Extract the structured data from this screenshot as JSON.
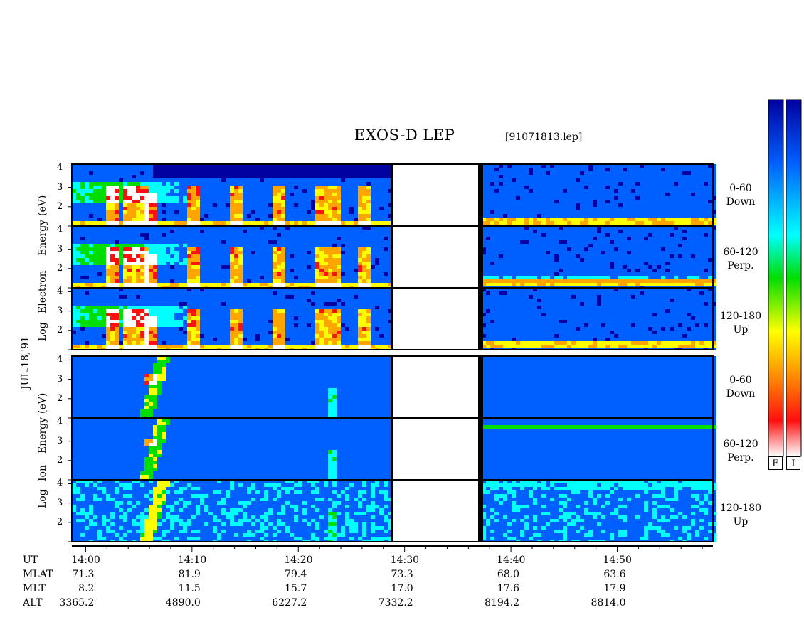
{
  "header": {
    "title": "EXOS-D LEP",
    "file_id": "[91071813.lep]"
  },
  "date_label": "JUL.18,'91",
  "electron_panel": {
    "ylabel_words": [
      "Log",
      "Electron",
      "Energy",
      "(eV)"
    ]
  },
  "ion_panel": {
    "ylabel_words": [
      "Log",
      "Ion",
      "Energy",
      "(eV)"
    ]
  },
  "pitch_labels": [
    {
      "range": "0-60",
      "dir": "Down"
    },
    {
      "range": "60-120",
      "dir": "Perp."
    },
    {
      "range": "120-180",
      "dir": "Up"
    },
    {
      "range": "0-60",
      "dir": "Down"
    },
    {
      "range": "60-120",
      "dir": "Perp."
    },
    {
      "range": "120-180",
      "dir": "Up"
    }
  ],
  "colorbar": {
    "labels": [
      "E",
      "I"
    ],
    "colors": [
      "#ffffff",
      "#ff1010",
      "#ffa500",
      "#ffff00",
      "#00dd00",
      "#00ffff",
      "#0060ff",
      "#0000a0"
    ]
  },
  "orbit_table": {
    "row_labels": [
      "UT",
      "MLAT",
      "MLT",
      "ALT"
    ],
    "columns": [
      {
        "UT": "14:00",
        "MLAT": "71.3",
        "MLT": "8.2",
        "ALT": "3365.2"
      },
      {
        "UT": "14:10",
        "MLAT": "81.9",
        "MLT": "11.5",
        "ALT": "4890.0"
      },
      {
        "UT": "14:20",
        "MLAT": "79.4",
        "MLT": "15.7",
        "ALT": "6227.2"
      },
      {
        "UT": "14:30",
        "MLAT": "73.3",
        "MLT": "17.0",
        "ALT": "7332.2"
      },
      {
        "UT": "14:40",
        "MLAT": "68.0",
        "MLT": "17.6",
        "ALT": "8194.2"
      },
      {
        "UT": "14:50",
        "MLAT": "63.6",
        "MLT": "17.9",
        "ALT": "8814.0"
      }
    ]
  },
  "chart_data": {
    "type": "heatmap",
    "title": "EXOS-D LEP",
    "x_axis": {
      "label": "UT",
      "ticks": [
        "14:00",
        "14:10",
        "14:20",
        "14:30",
        "14:40",
        "14:50"
      ],
      "range": [
        "13:58.7",
        "14:59"
      ]
    },
    "y_axis": {
      "label": "Log Energy (eV)",
      "ticks": [
        "1",
        "2",
        "3",
        "4"
      ],
      "range": [
        1,
        4.2
      ]
    },
    "data_gap": [
      "14:28.7",
      "14:36.7"
    ],
    "species": [
      "Electron",
      "Ion"
    ],
    "pitch_angle_bins": [
      "0-60 Down",
      "60-120 Perp.",
      "120-180 Up"
    ],
    "color_scale": "white(high)-red-orange-yellow-green-cyan-blue-navy(low)"
  }
}
